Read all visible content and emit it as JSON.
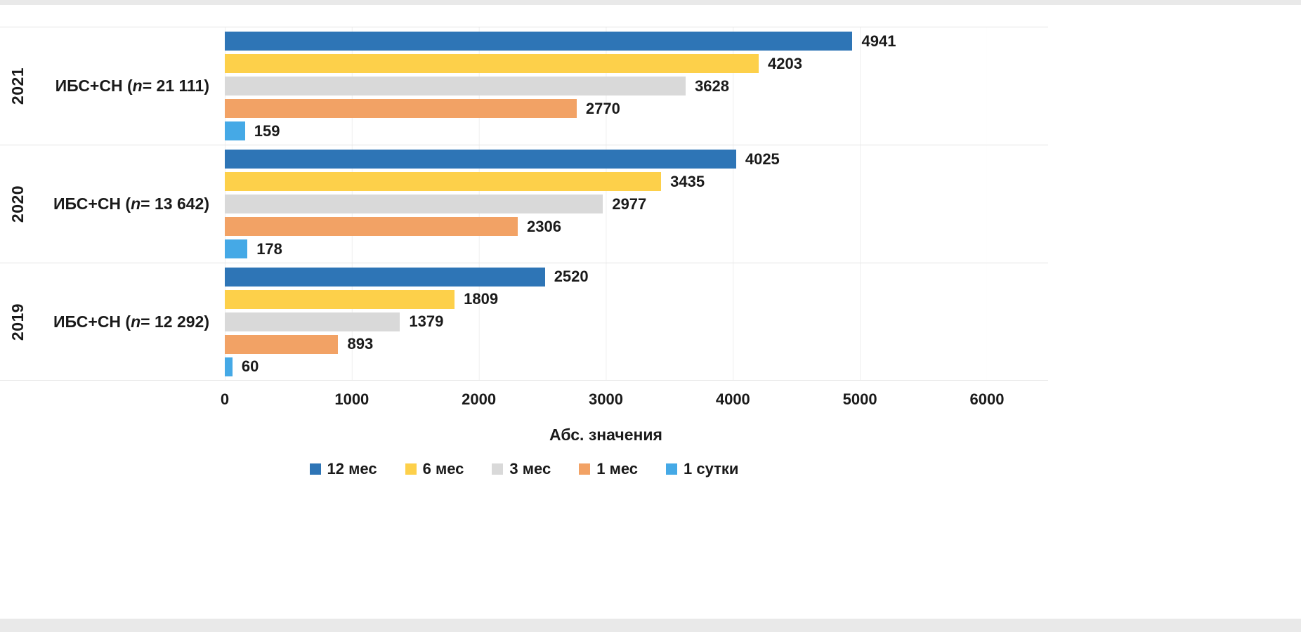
{
  "chart_data": {
    "type": "bar",
    "orientation": "horizontal",
    "title": "",
    "xlabel": "Абс. значения",
    "xlim": [
      0,
      6000
    ],
    "xticks": [
      "0",
      "1000",
      "2000",
      "3000",
      "4000",
      "5000",
      "6000"
    ],
    "grid": "light vertical gridlines every 1000; light horizontal separators between category bands",
    "legend_position": "bottom",
    "categories": [
      {
        "year": "2021",
        "label_prefix": "ИБС+СН (",
        "label_n": "n",
        "label_suffix": " = 21 111)"
      },
      {
        "year": "2020",
        "label_prefix": "ИБС+СН (",
        "label_n": "n",
        "label_suffix": " = 13 642)"
      },
      {
        "year": "2019",
        "label_prefix": "ИБС+СН (",
        "label_n": "n",
        "label_suffix": " = 12 292)"
      }
    ],
    "series": [
      {
        "name": "12 мес",
        "color": "#2e75b6",
        "values": [
          4941,
          4025,
          2520
        ]
      },
      {
        "name": "6 мес",
        "color": "#fdd04a",
        "values": [
          4203,
          3435,
          1809
        ]
      },
      {
        "name": "3 мес",
        "color": "#d9d9d9",
        "values": [
          3628,
          2977,
          1379
        ]
      },
      {
        "name": "1 мес",
        "color": "#f2a265",
        "values": [
          2770,
          2306,
          893
        ]
      },
      {
        "name": "1 сутки",
        "color": "#45a9e6",
        "values": [
          159,
          178,
          60
        ]
      }
    ]
  }
}
